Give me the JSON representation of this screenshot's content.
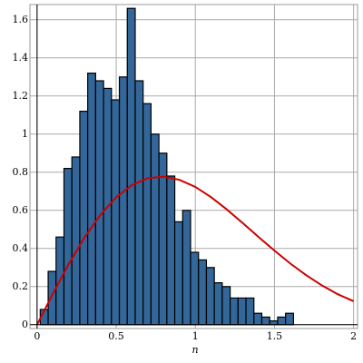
{
  "chart_data": {
    "type": "histogram",
    "x_label": "n",
    "bins": [
      0.02,
      0.07,
      0.12,
      0.17,
      0.22,
      0.27,
      0.32,
      0.37,
      0.42,
      0.47,
      0.52,
      0.57,
      0.62,
      0.67,
      0.72,
      0.77,
      0.82,
      0.87,
      0.92,
      0.97,
      1.02,
      1.07,
      1.12,
      1.17,
      1.22,
      1.27,
      1.32,
      1.37,
      1.42,
      1.47,
      1.52,
      1.57,
      1.62
    ],
    "values": [
      0.08,
      0.28,
      0.46,
      0.82,
      0.88,
      1.12,
      1.32,
      1.28,
      1.24,
      1.18,
      1.3,
      1.66,
      1.28,
      1.16,
      1.0,
      0.9,
      0.78,
      0.54,
      0.6,
      0.38,
      0.34,
      0.3,
      0.22,
      0.2,
      0.14,
      0.14,
      0.14,
      0.06,
      0.04,
      0.02,
      0.04,
      0.06
    ],
    "color": "#336699",
    "curve": {
      "color": "#cc0000",
      "x": [
        0,
        0.1,
        0.2,
        0.3,
        0.4,
        0.5,
        0.6,
        0.7,
        0.8,
        0.9,
        1.0,
        1.1,
        1.2,
        1.3,
        1.4,
        1.5,
        1.6,
        1.7,
        1.8,
        1.9,
        2.0
      ],
      "values": [
        0,
        0.163,
        0.318,
        0.458,
        0.576,
        0.669,
        0.733,
        0.769,
        0.777,
        0.76,
        0.723,
        0.669,
        0.604,
        0.533,
        0.46,
        0.389,
        0.321,
        0.26,
        0.206,
        0.16,
        0.123
      ]
    },
    "xlim": [
      -0.045,
      2.025
    ],
    "ylim": [
      -0.02,
      1.68
    ],
    "xticks": [
      0,
      0.5,
      1,
      1.5,
      2
    ],
    "yticks": [
      0,
      0.2,
      0.4,
      0.6,
      0.8,
      1,
      1.2,
      1.4,
      1.6
    ],
    "grid": true
  }
}
